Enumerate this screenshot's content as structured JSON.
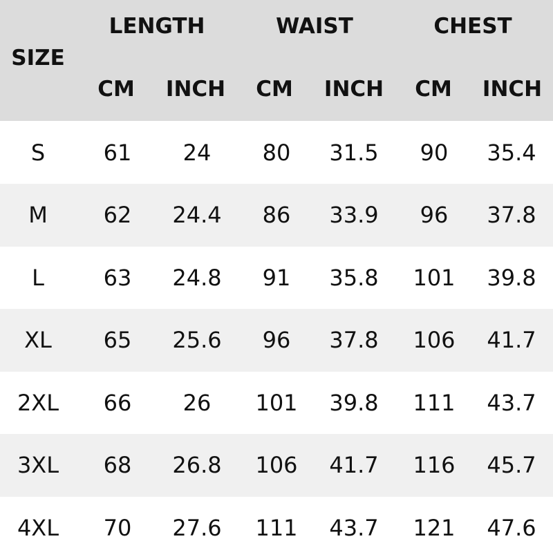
{
  "header": {
    "size": "SIZE",
    "groups": [
      "LENGTH",
      "WAIST",
      "CHEST"
    ],
    "units": [
      "CM",
      "INCH",
      "CM",
      "INCH",
      "CM",
      "INCH"
    ]
  },
  "rows": [
    [
      "S",
      "61",
      "24",
      "80",
      "31.5",
      "90",
      "35.4"
    ],
    [
      "M",
      "62",
      "24.4",
      "86",
      "33.9",
      "96",
      "37.8"
    ],
    [
      "L",
      "63",
      "24.8",
      "91",
      "35.8",
      "101",
      "39.8"
    ],
    [
      "XL",
      "65",
      "25.6",
      "96",
      "37.8",
      "106",
      "41.7"
    ],
    [
      "2XL",
      "66",
      "26",
      "101",
      "39.8",
      "111",
      "43.7"
    ],
    [
      "3XL",
      "68",
      "26.8",
      "106",
      "41.7",
      "116",
      "45.7"
    ],
    [
      "4XL",
      "70",
      "27.6",
      "111",
      "43.7",
      "121",
      "47.6"
    ]
  ]
}
